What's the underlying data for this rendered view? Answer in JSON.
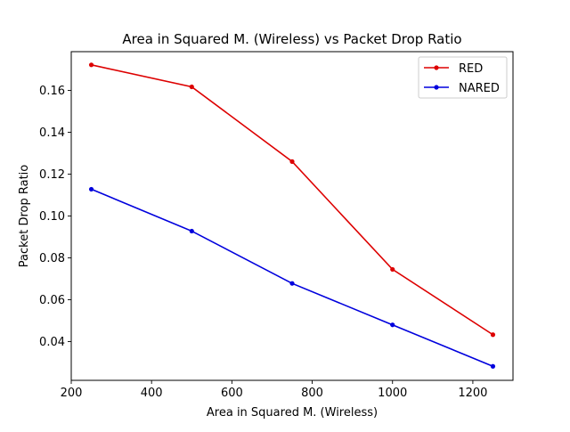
{
  "chart_data": {
    "type": "line",
    "title": "Area in Squared M. (Wireless)  vs Packet Drop Ratio",
    "xlabel": "Area in Squared M. (Wireless)",
    "ylabel": "Packet Drop Ratio",
    "xlim": [
      200,
      1300
    ],
    "ylim": [
      0.0215,
      0.1785
    ],
    "xticks": [
      200,
      400,
      600,
      800,
      1000,
      1200
    ],
    "yticks": [
      0.04,
      0.06,
      0.08,
      0.1,
      0.12,
      0.14,
      0.16
    ],
    "xtick_labels": [
      "200",
      "400",
      "600",
      "800",
      "1000",
      "1200"
    ],
    "ytick_labels": [
      "0.04",
      "0.06",
      "0.08",
      "0.10",
      "0.12",
      "0.14",
      "0.16"
    ],
    "grid": false,
    "legend_position": "top-right",
    "x": [
      250,
      500,
      750,
      1000,
      1250
    ],
    "series": [
      {
        "name": "RED",
        "color": "#dd0000",
        "values": [
          0.1722,
          0.1617,
          0.126,
          0.0745,
          0.0433
        ]
      },
      {
        "name": "NARED",
        "color": "#0000dd",
        "values": [
          0.1128,
          0.0928,
          0.0678,
          0.048,
          0.0282
        ]
      }
    ]
  }
}
